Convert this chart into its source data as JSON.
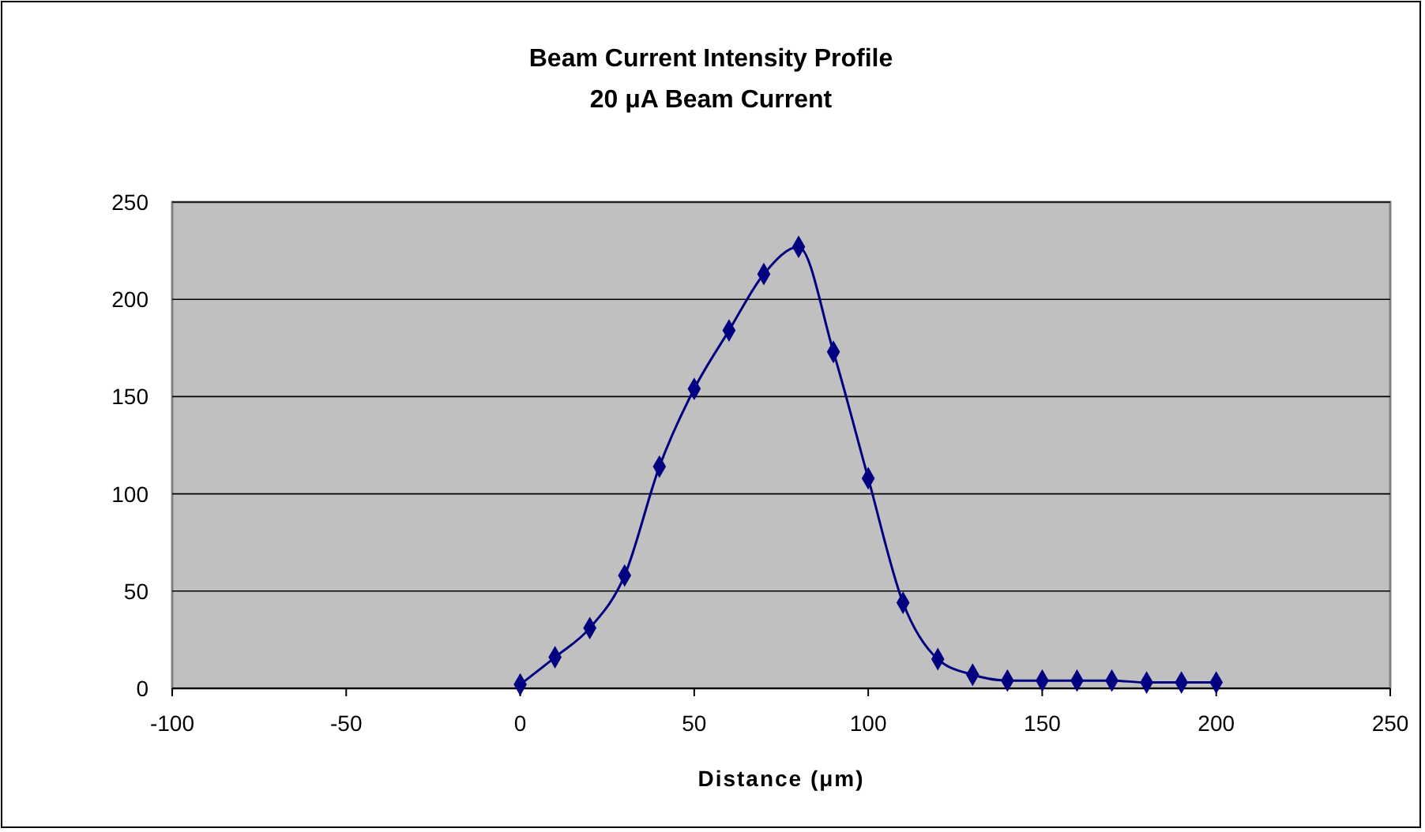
{
  "chart_data": {
    "type": "line",
    "title": "Beam Current Intensity Profile",
    "subtitle": "20 μA Beam Current",
    "xlabel": "Distance (μm)",
    "x": [
      0,
      10,
      20,
      30,
      40,
      50,
      60,
      70,
      80,
      90,
      100,
      110,
      120,
      130,
      140,
      150,
      160,
      170,
      180,
      190,
      200
    ],
    "series": [
      {
        "color": "#000080",
        "values": [
          2,
          16,
          31,
          58,
          114,
          154,
          184,
          213,
          227,
          173,
          108,
          44,
          15,
          7,
          4,
          4,
          4,
          4,
          3,
          3,
          3
        ]
      }
    ],
    "xlim": [
      -100,
      250
    ],
    "xticks": [
      -100,
      -50,
      0,
      50,
      100,
      150,
      200,
      250
    ],
    "ylim": [
      0,
      250
    ],
    "yticks": [
      0,
      50,
      100,
      150,
      200,
      250
    ],
    "grid": "y",
    "marker": "diamond",
    "line_style": "solid"
  }
}
